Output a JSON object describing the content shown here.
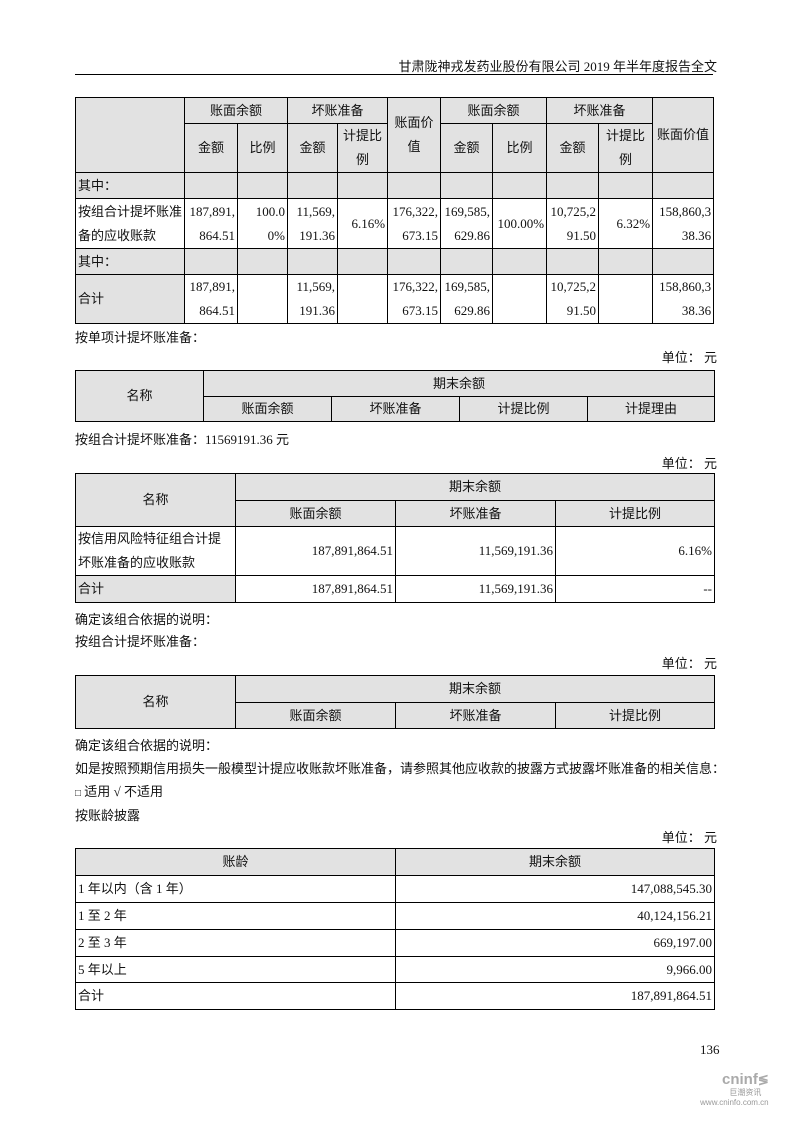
{
  "header": "甘肃陇神戎发药业股份有限公司 2019 年半年度报告全文",
  "table1": {
    "group_headers": [
      "账面余额",
      "坏账准备",
      "账面价值",
      "账面余额",
      "坏账准备",
      "账面价值"
    ],
    "sub_headers": [
      "金额",
      "比例",
      "金额",
      "计提比例",
      "金额",
      "比例",
      "金额",
      "计提比例"
    ],
    "rows": [
      {
        "label": "其中：",
        "cells": [
          "",
          "",
          "",
          "",
          "",
          "",
          "",
          "",
          "",
          ""
        ]
      },
      {
        "label": "按组合计提坏账准备的应收账款",
        "cells": [
          "187,891,864.51",
          "100.00%",
          "11,569,191.36",
          "6.16%",
          "176,322,673.15",
          "169,585,629.86",
          "100.00%",
          "10,725,291.50",
          "6.32%",
          "158,860,338.36"
        ]
      },
      {
        "label": "其中：",
        "cells": [
          "",
          "",
          "",
          "",
          "",
          "",
          "",
          "",
          "",
          ""
        ]
      },
      {
        "label": "合计",
        "cells": [
          "187,891,864.51",
          "",
          "11,569,191.36",
          "",
          "176,322,673.15",
          "169,585,629.86",
          "",
          "10,725,291.50",
          "",
          "158,860,338.36"
        ]
      }
    ]
  },
  "section1": {
    "title": "按单项计提坏账准备：",
    "unit": "单位： 元",
    "name_header": "名称",
    "group_header": "期末余额",
    "columns": [
      "账面余额",
      "坏账准备",
      "计提比例",
      "计提理由"
    ]
  },
  "section2": {
    "title": "按组合计提坏账准备：11569191.36 元",
    "unit": "单位： 元",
    "name_header": "名称",
    "group_header": "期末余额",
    "columns": [
      "账面余额",
      "坏账准备",
      "计提比例"
    ],
    "rows": [
      {
        "name": "按信用风险特征组合计提坏账准备的应收账款",
        "balance": "187,891,864.51",
        "provision": "11,569,191.36",
        "ratio": "6.16%"
      },
      {
        "name": "合计",
        "balance": "187,891,864.51",
        "provision": "11,569,191.36",
        "ratio": "--"
      }
    ],
    "note": "确定该组合依据的说明："
  },
  "section3": {
    "title": "按组合计提坏账准备：",
    "unit": "单位： 元",
    "name_header": "名称",
    "group_header": "期末余额",
    "columns": [
      "账面余额",
      "坏账准备",
      "计提比例"
    ],
    "note": "确定该组合依据的说明："
  },
  "expected_loss_text": "如是按照预期信用损失一般模型计提应收账款坏账准备，请参照其他应收款的披露方式披露坏账准备的相关信息：",
  "applicability": {
    "box": "□",
    "applicable": "适用",
    "check": "√",
    "not_applicable": "不适用"
  },
  "aging": {
    "title": "按账龄披露",
    "unit": "单位： 元",
    "headers": [
      "账龄",
      "期末余额"
    ],
    "rows": [
      {
        "age": "1 年以内（含 1 年）",
        "amount": "147,088,545.30"
      },
      {
        "age": "1 至 2 年",
        "amount": "40,124,156.21"
      },
      {
        "age": "2 至 3 年",
        "amount": "669,197.00"
      },
      {
        "age": "5 年以上",
        "amount": "9,966.00"
      },
      {
        "age": "合计",
        "amount": "187,891,864.51"
      }
    ]
  },
  "page_number": "136",
  "watermark": {
    "brand": "cninf",
    "cn": "巨潮资讯",
    "url": "www.cninfo.com.cn"
  }
}
